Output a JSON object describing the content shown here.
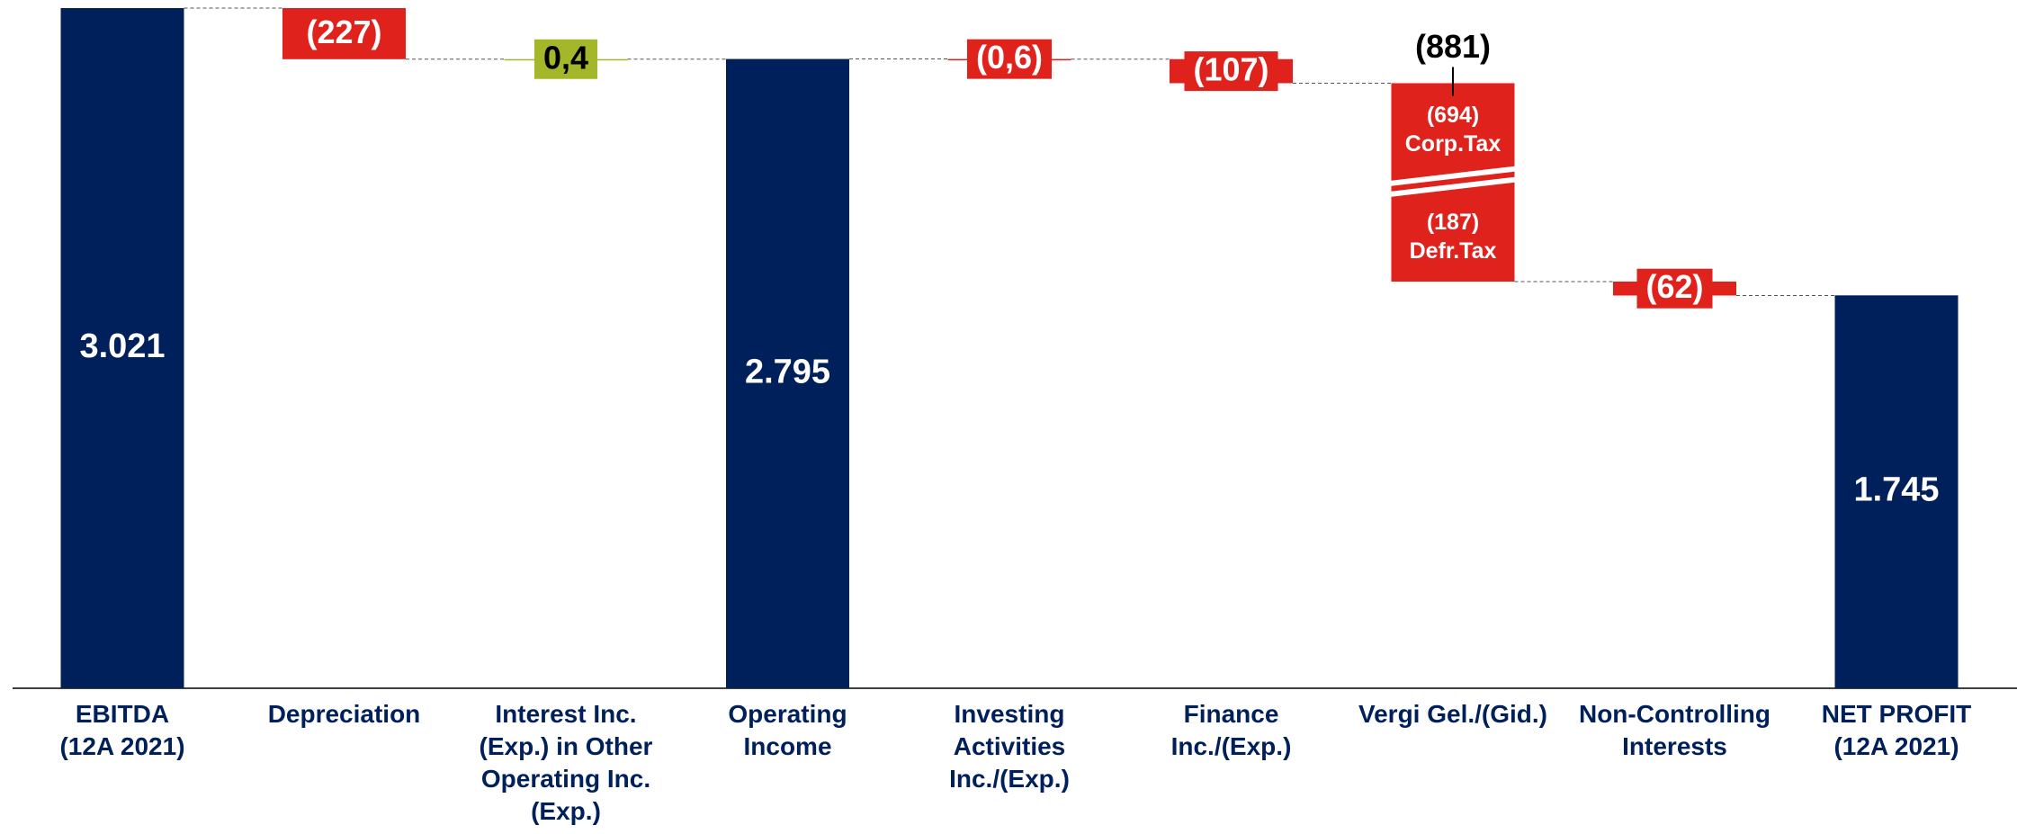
{
  "chart_data": {
    "type": "waterfall",
    "categories": [
      "EBITDA\n(12A 2021)",
      "Depreciation",
      "Interest Inc.\n(Exp.) in Other\nOperating Inc.\n(Exp.)",
      "Operating\nIncome",
      "Investing\nActivities\nInc./(Exp.)",
      "Finance\nInc./(Exp.)",
      "Vergi Gel./(Gid.)",
      "Non-Controlling\nInterests",
      "NET PROFIT\n(12A 2021)"
    ],
    "values": [
      3021,
      -227,
      0.4,
      2795,
      -0.6,
      -107,
      -881,
      -62,
      1745
    ],
    "value_labels": [
      "3.021",
      "(227)",
      "0,4",
      "2.795",
      "(0,6)",
      "(107)",
      "(881)",
      "(62)",
      "1.745"
    ],
    "measure": [
      "total",
      "relative",
      "relative",
      "total",
      "relative",
      "relative",
      "relative",
      "relative",
      "total"
    ],
    "colors": [
      "#00205b",
      "#e0221d",
      "#a4b72a",
      "#00205b",
      "#e0221d",
      "#e0221d",
      "#e0221d",
      "#e0221d",
      "#00205b"
    ],
    "components": {
      "6": [
        {
          "name": "Corp.Tax",
          "value": -694,
          "value_label": "(694)"
        },
        {
          "name": "Defr.Tax",
          "value": -187,
          "value_label": "(187)"
        }
      ]
    }
  }
}
